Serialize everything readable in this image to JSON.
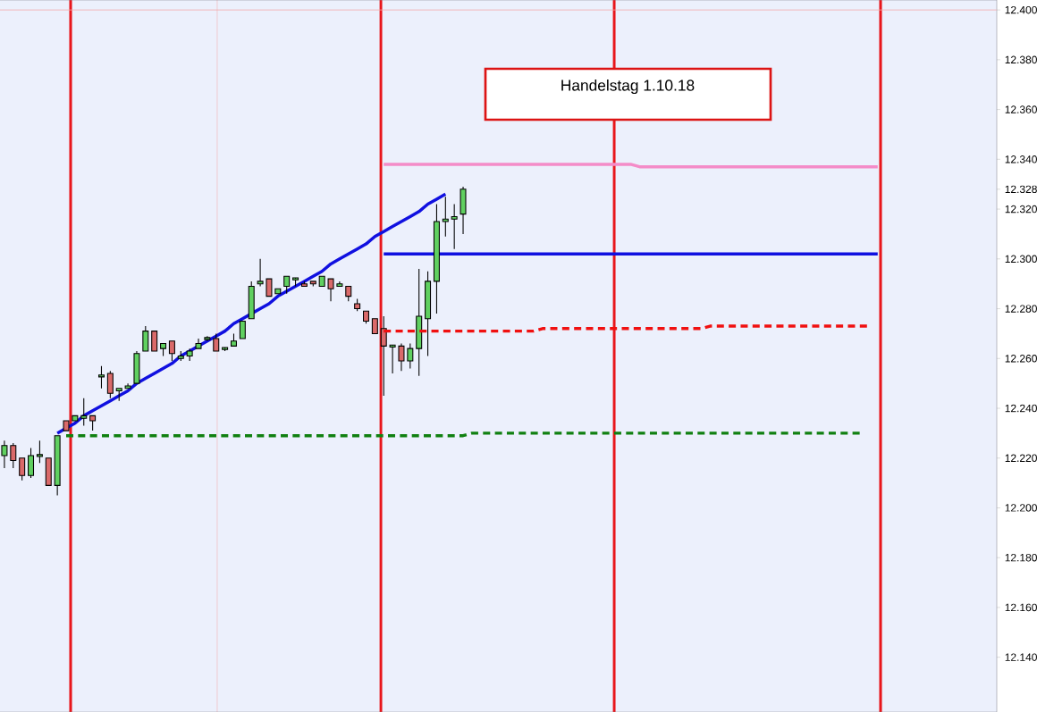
{
  "chart_data": {
    "type": "candlestick",
    "categories": [
      null,
      null,
      null,
      null,
      null,
      null,
      null,
      null,
      null,
      null,
      null,
      null,
      null,
      null,
      null,
      null,
      null,
      null,
      null,
      null,
      null,
      null,
      null,
      null,
      null,
      null,
      null,
      null,
      null,
      null,
      null,
      null,
      null,
      null,
      null,
      null,
      null,
      null,
      null,
      null,
      null,
      null,
      null,
      null,
      null,
      null,
      null,
      null,
      null,
      null,
      null,
      null,
      null,
      null,
      null,
      null,
      null,
      null,
      null,
      null,
      null,
      null,
      null,
      null,
      null,
      null,
      null,
      null,
      null,
      null,
      null,
      null,
      null,
      null,
      null,
      null,
      null,
      null,
      null,
      null,
      null,
      null,
      null,
      null,
      null,
      null,
      null,
      null,
      null,
      null,
      null,
      null,
      null,
      null,
      null,
      null,
      null,
      null,
      null,
      null,
      null,
      null,
      null,
      null,
      null,
      null,
      null,
      null,
      null,
      null,
      null,
      null,
      null
    ],
    "ohlc": [
      [
        12.221,
        12.227,
        12.216,
        12.225
      ],
      [
        12.225,
        12.226,
        12.216,
        12.219
      ],
      [
        12.22,
        12.22,
        12.211,
        12.213
      ],
      [
        12.213,
        12.224,
        12.212,
        12.221
      ],
      [
        12.221,
        12.227,
        12.218,
        12.221
      ],
      [
        12.22,
        12.22,
        12.209,
        12.209
      ],
      [
        12.209,
        12.229,
        12.205,
        12.229
      ],
      [
        12.235,
        12.235,
        12.231,
        12.231
      ],
      [
        12.235,
        12.237,
        12.235,
        12.237
      ],
      [
        12.236,
        12.244,
        12.233,
        12.237
      ],
      [
        12.237,
        12.237,
        12.231,
        12.235
      ],
      [
        12.253,
        12.257,
        12.248,
        12.253
      ],
      [
        12.254,
        12.255,
        12.244,
        12.246
      ],
      [
        12.247,
        12.248,
        12.243,
        12.248
      ],
      [
        12.248,
        12.25,
        12.248,
        12.249
      ],
      [
        12.25,
        12.263,
        12.25,
        12.262
      ],
      [
        12.263,
        12.273,
        12.263,
        12.271
      ],
      [
        12.271,
        12.271,
        12.263,
        12.263
      ],
      [
        12.264,
        12.266,
        12.261,
        12.266
      ],
      [
        12.267,
        12.267,
        12.259,
        12.262
      ],
      [
        12.26,
        12.263,
        12.259,
        12.261
      ],
      [
        12.261,
        12.264,
        12.259,
        12.263
      ],
      [
        12.264,
        12.268,
        12.264,
        12.266
      ],
      [
        12.268,
        12.269,
        12.267,
        12.268
      ],
      [
        12.268,
        12.27,
        12.263,
        12.263
      ],
      [
        12.264,
        12.264,
        12.263,
        12.264
      ],
      [
        12.265,
        12.27,
        12.265,
        12.267
      ],
      [
        12.268,
        12.275,
        12.268,
        12.275
      ],
      [
        12.276,
        12.291,
        12.276,
        12.289
      ],
      [
        12.29,
        12.3,
        12.289,
        12.291
      ],
      [
        12.292,
        12.292,
        12.285,
        12.285
      ],
      [
        12.286,
        12.288,
        12.286,
        12.288
      ],
      [
        12.289,
        12.293,
        12.286,
        12.293
      ],
      [
        12.292,
        12.292,
        12.289,
        12.292
      ],
      [
        12.29,
        12.291,
        12.289,
        12.289
      ],
      [
        12.291,
        12.291,
        12.289,
        12.29
      ],
      [
        12.289,
        12.293,
        12.289,
        12.293
      ],
      [
        12.292,
        12.292,
        12.283,
        12.288
      ],
      [
        12.289,
        12.291,
        12.289,
        12.29
      ],
      [
        12.289,
        12.289,
        12.283,
        12.285
      ],
      [
        12.282,
        12.284,
        12.279,
        12.28
      ],
      [
        12.279,
        12.279,
        12.274,
        12.275
      ],
      [
        12.276,
        12.276,
        12.27,
        12.27
      ],
      [
        12.272,
        12.277,
        12.245,
        12.265
      ],
      [
        12.265,
        12.265,
        12.254,
        12.265
      ],
      [
        12.265,
        12.266,
        12.255,
        12.259
      ],
      [
        12.259,
        12.266,
        12.256,
        12.264
      ],
      [
        12.264,
        12.296,
        12.253,
        12.277
      ],
      [
        12.276,
        12.295,
        12.261,
        12.291
      ],
      [
        12.291,
        12.322,
        12.278,
        12.315
      ],
      [
        12.315,
        12.325,
        12.309,
        12.316
      ],
      [
        12.316,
        12.322,
        12.304,
        12.317
      ],
      [
        12.318,
        12.329,
        12.31,
        12.328
      ],
      null,
      null,
      null,
      null,
      null,
      null,
      null,
      null,
      null,
      null,
      null,
      null,
      null,
      null,
      null,
      null,
      null,
      null,
      null,
      null,
      null,
      null,
      null,
      null,
      null,
      null,
      null,
      null,
      null,
      null,
      null,
      null,
      null,
      null,
      null,
      null,
      null,
      null,
      null,
      null,
      null,
      null,
      null,
      null,
      null,
      null,
      null,
      null,
      null,
      null,
      null,
      null,
      null,
      null,
      null,
      null,
      null,
      null,
      null,
      null
    ],
    "series": [
      {
        "type": "line",
        "color": "#1010e0",
        "line_style": "solid",
        "values": [
          null,
          null,
          null,
          null,
          null,
          null,
          12.23,
          12.232,
          12.234,
          12.237,
          12.239,
          12.241,
          12.243,
          12.245,
          12.247,
          12.25,
          12.252,
          12.254,
          12.256,
          12.258,
          12.261,
          12.263,
          12.265,
          12.267,
          12.269,
          12.271,
          12.274,
          12.276,
          12.278,
          12.28,
          12.282,
          12.285,
          12.287,
          12.289,
          12.291,
          12.293,
          12.295,
          12.298,
          12.3,
          12.302,
          12.304,
          12.306,
          12.309,
          12.311,
          12.313,
          12.315,
          12.317,
          12.319,
          12.322,
          12.324,
          12.326,
          null,
          null,
          null,
          null,
          null,
          null,
          null,
          null,
          null,
          null,
          null,
          null,
          null,
          null,
          null,
          null,
          null,
          null,
          null,
          null,
          null,
          null,
          null,
          null,
          null,
          null,
          null,
          null,
          null,
          null,
          null,
          null,
          null,
          null,
          null,
          null,
          null,
          null,
          null,
          null,
          null,
          null,
          null,
          null,
          null,
          null,
          null,
          null,
          null,
          null,
          null,
          null,
          null,
          null,
          null,
          null,
          null,
          null,
          null,
          null,
          null,
          null
        ]
      },
      {
        "type": "line",
        "color": "#1010e0",
        "line_style": "solid",
        "values": [
          null,
          null,
          null,
          null,
          null,
          null,
          null,
          null,
          null,
          null,
          null,
          null,
          null,
          null,
          null,
          null,
          null,
          null,
          null,
          null,
          null,
          null,
          null,
          null,
          null,
          null,
          null,
          null,
          null,
          null,
          null,
          null,
          null,
          null,
          null,
          null,
          null,
          null,
          null,
          null,
          null,
          null,
          null,
          12.302,
          12.302,
          12.302,
          12.302,
          12.302,
          12.302,
          12.302,
          12.302,
          12.302,
          12.302,
          12.302,
          12.302,
          12.302,
          12.302,
          12.302,
          12.302,
          12.302,
          12.302,
          12.302,
          12.302,
          12.302,
          12.302,
          12.302,
          12.302,
          12.302,
          12.302,
          12.302,
          12.302,
          12.302,
          12.302,
          12.302,
          12.302,
          12.302,
          12.302,
          12.302,
          12.302,
          12.302,
          12.302,
          12.302,
          12.302,
          12.302,
          12.302,
          12.302,
          12.302,
          12.302,
          12.302,
          12.302,
          12.302,
          12.302,
          12.302,
          12.302,
          12.302,
          12.302,
          12.302,
          12.302,
          12.302,
          12.302,
          null,
          null,
          null,
          null,
          null,
          null,
          null,
          null,
          null,
          null,
          null,
          null,
          null
        ]
      },
      {
        "type": "line",
        "color": "#f48cc8",
        "line_style": "solid",
        "values": [
          null,
          null,
          null,
          null,
          null,
          null,
          null,
          null,
          null,
          null,
          null,
          null,
          null,
          null,
          null,
          null,
          null,
          null,
          null,
          null,
          null,
          null,
          null,
          null,
          null,
          null,
          null,
          null,
          null,
          null,
          null,
          null,
          null,
          null,
          null,
          null,
          null,
          null,
          null,
          null,
          null,
          null,
          null,
          12.338,
          12.338,
          12.338,
          12.338,
          12.338,
          12.338,
          12.338,
          12.338,
          12.338,
          12.338,
          12.338,
          12.338,
          12.338,
          12.338,
          12.338,
          12.338,
          12.338,
          12.338,
          12.338,
          12.338,
          12.338,
          12.338,
          12.338,
          12.338,
          12.338,
          12.338,
          12.338,
          12.338,
          12.338,
          12.337,
          12.337,
          12.337,
          12.337,
          12.337,
          12.337,
          12.337,
          12.337,
          12.337,
          12.337,
          12.337,
          12.337,
          12.337,
          12.337,
          12.337,
          12.337,
          12.337,
          12.337,
          12.337,
          12.337,
          12.337,
          12.337,
          12.337,
          12.337,
          12.337,
          12.337,
          12.337,
          12.337,
          null,
          null,
          null,
          null,
          null,
          null,
          null,
          null,
          null,
          null,
          null,
          null,
          null
        ]
      },
      {
        "type": "line",
        "color": "#f01010",
        "line_style": "dashed",
        "values": [
          null,
          null,
          null,
          null,
          null,
          null,
          null,
          null,
          null,
          null,
          null,
          null,
          null,
          null,
          null,
          null,
          null,
          null,
          null,
          null,
          null,
          null,
          null,
          null,
          null,
          null,
          null,
          null,
          null,
          null,
          null,
          null,
          null,
          null,
          null,
          null,
          null,
          null,
          null,
          null,
          null,
          null,
          null,
          12.271,
          12.271,
          12.271,
          12.271,
          12.271,
          12.271,
          12.271,
          12.271,
          12.271,
          12.271,
          12.271,
          12.271,
          12.271,
          12.271,
          12.271,
          12.271,
          12.271,
          12.271,
          12.272,
          12.272,
          12.272,
          12.272,
          12.272,
          12.272,
          12.272,
          12.272,
          12.272,
          12.272,
          12.272,
          12.272,
          12.272,
          12.272,
          12.272,
          12.272,
          12.272,
          12.272,
          12.272,
          12.273,
          12.273,
          12.273,
          12.273,
          12.273,
          12.273,
          12.273,
          12.273,
          12.273,
          12.273,
          12.273,
          12.273,
          12.273,
          12.273,
          12.273,
          12.273,
          12.273,
          12.273,
          12.273,
          null,
          null,
          null,
          null,
          null,
          null,
          null,
          null,
          null,
          null,
          null,
          null,
          null,
          null
        ]
      },
      {
        "type": "line",
        "color": "#108010",
        "line_style": "dashed",
        "values": [
          null,
          null,
          null,
          null,
          null,
          null,
          null,
          12.229,
          12.229,
          12.229,
          12.229,
          12.229,
          12.229,
          12.229,
          12.229,
          12.229,
          12.229,
          12.229,
          12.229,
          12.229,
          12.229,
          12.229,
          12.229,
          12.229,
          12.229,
          12.229,
          12.229,
          12.229,
          12.229,
          12.229,
          12.229,
          12.229,
          12.229,
          12.229,
          12.229,
          12.229,
          12.229,
          12.229,
          12.229,
          12.229,
          12.229,
          12.229,
          12.229,
          12.229,
          12.229,
          12.229,
          12.229,
          12.229,
          12.229,
          12.229,
          12.229,
          12.229,
          12.229,
          12.23,
          12.23,
          12.23,
          12.23,
          12.23,
          12.23,
          12.23,
          12.23,
          12.23,
          12.23,
          12.23,
          12.23,
          12.23,
          12.23,
          12.23,
          12.23,
          12.23,
          12.23,
          12.23,
          12.23,
          12.23,
          12.23,
          12.23,
          12.23,
          12.23,
          12.23,
          12.23,
          12.23,
          12.23,
          12.23,
          12.23,
          12.23,
          12.23,
          12.23,
          12.23,
          12.23,
          12.23,
          12.23,
          12.23,
          12.23,
          12.23,
          12.23,
          12.23,
          12.23,
          12.23,
          null,
          null,
          null,
          null,
          null,
          null,
          null,
          null,
          null,
          null,
          null,
          null,
          null,
          null,
          null
        ]
      }
    ],
    "ref_lines": [
      {
        "axis": "y",
        "value": 12.4,
        "color": "#f4a8a8"
      }
    ],
    "annotations": [
      "Handelstag 1.10.18"
    ],
    "ylim": [
      12.118,
      12.404
    ],
    "yticks": [
      {
        "value": 12.14,
        "label": "12.140"
      },
      {
        "value": 12.16,
        "label": "12.160"
      },
      {
        "value": 12.18,
        "label": "12.180"
      },
      {
        "value": 12.2,
        "label": "12.200"
      },
      {
        "value": 12.22,
        "label": "12.220"
      },
      {
        "value": 12.24,
        "label": "12.240"
      },
      {
        "value": 12.26,
        "label": "12.260"
      },
      {
        "value": 12.28,
        "label": "12.280"
      },
      {
        "value": 12.3,
        "label": "12.300"
      },
      {
        "value": 12.32,
        "label": "12.320"
      },
      {
        "value": 12.328,
        "label": "12.328"
      },
      {
        "value": 12.34,
        "label": "12.340"
      },
      {
        "value": 12.36,
        "label": "12.360"
      },
      {
        "value": 12.38,
        "label": "12.380"
      },
      {
        "value": 12.4,
        "label": "12.400"
      }
    ]
  }
}
